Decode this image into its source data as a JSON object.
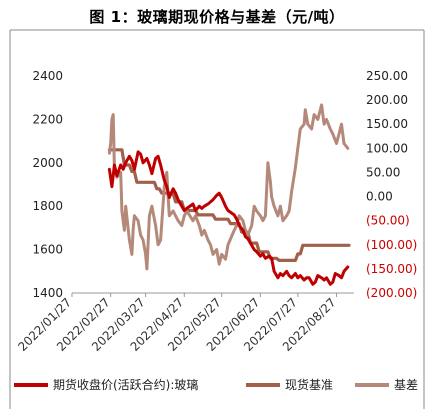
{
  "title": "图 1：玻璃期现价格与基差（元/吨）",
  "chart_data": {
    "type": "line",
    "title": "图 1：玻璃期现价格与基差（元/吨）",
    "xlabel": "",
    "ylabel_left": "",
    "ylabel_right": "",
    "x_ticks": [
      "2022/01/27",
      "2022/02/27",
      "2022/03/27",
      "2022/04/27",
      "2022/05/27",
      "2022/06/27",
      "2022/07/27",
      "2022/08/27"
    ],
    "x_range": [
      "2022/01/27",
      "2022/09/10"
    ],
    "left_axis": {
      "ylim": [
        1400,
        2400
      ],
      "ticks": [
        1400,
        1600,
        1800,
        2000,
        2200,
        2400
      ]
    },
    "right_axis": {
      "ylim": [
        -200,
        250
      ],
      "ticks": [
        {
          "value": 250,
          "label": "250.00",
          "color": "#222222"
        },
        {
          "value": 200,
          "label": "200.00",
          "color": "#222222"
        },
        {
          "value": 150,
          "label": "150.00",
          "color": "#222222"
        },
        {
          "value": 100,
          "label": "100.00",
          "color": "#222222"
        },
        {
          "value": 50,
          "label": "50.00",
          "color": "#222222"
        },
        {
          "value": 0,
          "label": "0.00",
          "color": "#222222"
        },
        {
          "value": -50,
          "label": "(50.00)",
          "color": "#cc0000"
        },
        {
          "value": -100,
          "label": "(100.00)",
          "color": "#cc0000"
        },
        {
          "value": -150,
          "label": "(150.00)",
          "color": "#cc0000"
        },
        {
          "value": -200,
          "label": "(200.00)",
          "color": "#cc0000"
        }
      ]
    },
    "grid": false,
    "legend": {
      "placement": "bottom"
    },
    "series": [
      {
        "name": "期货收盘价(活跃合约):玻璃",
        "axis": "left",
        "color": "#c00000",
        "points": [
          [
            "2022/02/26",
            1970
          ],
          [
            "2022/02/28",
            1890
          ],
          [
            "2022/03/02",
            1990
          ],
          [
            "2022/03/04",
            1940
          ],
          [
            "2022/03/07",
            1990
          ],
          [
            "2022/03/09",
            1970
          ],
          [
            "2022/03/11",
            2000
          ],
          [
            "2022/03/14",
            2030
          ],
          [
            "2022/03/16",
            2010
          ],
          [
            "2022/03/18",
            1970
          ],
          [
            "2022/03/21",
            2050
          ],
          [
            "2022/03/23",
            2040
          ],
          [
            "2022/03/25",
            2000
          ],
          [
            "2022/03/28",
            2020
          ],
          [
            "2022/03/30",
            1990
          ],
          [
            "2022/04/01",
            1950
          ],
          [
            "2022/04/04",
            2020
          ],
          [
            "2022/04/06",
            2030
          ],
          [
            "2022/04/08",
            1990
          ],
          [
            "2022/04/11",
            1920
          ],
          [
            "2022/04/13",
            1890
          ],
          [
            "2022/04/15",
            1840
          ],
          [
            "2022/04/18",
            1880
          ],
          [
            "2022/04/20",
            1860
          ],
          [
            "2022/04/22",
            1830
          ],
          [
            "2022/04/25",
            1800
          ],
          [
            "2022/04/27",
            1780
          ],
          [
            "2022/04/29",
            1790
          ],
          [
            "2022/05/04",
            1810
          ],
          [
            "2022/05/06",
            1780
          ],
          [
            "2022/05/09",
            1800
          ],
          [
            "2022/05/11",
            1790
          ],
          [
            "2022/05/13",
            1800
          ],
          [
            "2022/05/16",
            1810
          ],
          [
            "2022/05/18",
            1820
          ],
          [
            "2022/05/20",
            1830
          ],
          [
            "2022/05/23",
            1850
          ],
          [
            "2022/05/25",
            1860
          ],
          [
            "2022/05/27",
            1840
          ],
          [
            "2022/05/30",
            1800
          ],
          [
            "2022/06/01",
            1780
          ],
          [
            "2022/06/06",
            1760
          ],
          [
            "2022/06/08",
            1740
          ],
          [
            "2022/06/10",
            1710
          ],
          [
            "2022/06/13",
            1690
          ],
          [
            "2022/06/15",
            1660
          ],
          [
            "2022/06/17",
            1650
          ],
          [
            "2022/06/20",
            1620
          ],
          [
            "2022/06/22",
            1600
          ],
          [
            "2022/06/24",
            1590
          ],
          [
            "2022/06/27",
            1570
          ],
          [
            "2022/06/29",
            1580
          ],
          [
            "2022/07/01",
            1560
          ],
          [
            "2022/07/04",
            1570
          ],
          [
            "2022/07/06",
            1560
          ],
          [
            "2022/07/08",
            1500
          ],
          [
            "2022/07/11",
            1470
          ],
          [
            "2022/07/13",
            1490
          ],
          [
            "2022/07/15",
            1480
          ],
          [
            "2022/07/18",
            1500
          ],
          [
            "2022/07/20",
            1480
          ],
          [
            "2022/07/22",
            1470
          ],
          [
            "2022/07/25",
            1490
          ],
          [
            "2022/07/27",
            1470
          ],
          [
            "2022/07/29",
            1480
          ],
          [
            "2022/08/01",
            1460
          ],
          [
            "2022/08/03",
            1470
          ],
          [
            "2022/08/05",
            1470
          ],
          [
            "2022/08/08",
            1440
          ],
          [
            "2022/08/10",
            1450
          ],
          [
            "2022/08/12",
            1480
          ],
          [
            "2022/08/15",
            1470
          ],
          [
            "2022/08/17",
            1460
          ],
          [
            "2022/08/19",
            1470
          ],
          [
            "2022/08/22",
            1440
          ],
          [
            "2022/08/24",
            1450
          ],
          [
            "2022/08/26",
            1490
          ],
          [
            "2022/08/29",
            1480
          ],
          [
            "2022/08/31",
            1470
          ],
          [
            "2022/09/02",
            1500
          ],
          [
            "2022/09/05",
            1520
          ]
        ]
      },
      {
        "name": "现货基准",
        "axis": "left",
        "color": "#a0604a",
        "points": [
          [
            "2022/02/26",
            2060
          ],
          [
            "2022/03/08",
            2060
          ],
          [
            "2022/03/10",
            1990
          ],
          [
            "2022/03/14",
            1990
          ],
          [
            "2022/03/16",
            1960
          ],
          [
            "2022/03/18",
            1960
          ],
          [
            "2022/03/20",
            1910
          ],
          [
            "2022/04/03",
            1910
          ],
          [
            "2022/04/05",
            1880
          ],
          [
            "2022/04/07",
            1880
          ],
          [
            "2022/04/09",
            1860
          ],
          [
            "2022/04/18",
            1860
          ],
          [
            "2022/04/20",
            1820
          ],
          [
            "2022/04/25",
            1820
          ],
          [
            "2022/04/27",
            1780
          ],
          [
            "2022/05/06",
            1780
          ],
          [
            "2022/05/08",
            1760
          ],
          [
            "2022/05/20",
            1760
          ],
          [
            "2022/05/22",
            1740
          ],
          [
            "2022/06/01",
            1740
          ],
          [
            "2022/06/03",
            1720
          ],
          [
            "2022/06/10",
            1720
          ],
          [
            "2022/06/12",
            1680
          ],
          [
            "2022/06/17",
            1680
          ],
          [
            "2022/06/19",
            1630
          ],
          [
            "2022/06/24",
            1630
          ],
          [
            "2022/06/26",
            1590
          ],
          [
            "2022/07/03",
            1590
          ],
          [
            "2022/07/05",
            1560
          ],
          [
            "2022/07/10",
            1560
          ],
          [
            "2022/07/12",
            1550
          ],
          [
            "2022/07/25",
            1550
          ],
          [
            "2022/07/27",
            1580
          ],
          [
            "2022/07/29",
            1580
          ],
          [
            "2022/07/31",
            1620
          ],
          [
            "2022/09/06",
            1620
          ]
        ]
      },
      {
        "name": "基差",
        "axis": "right",
        "color": "#b5897a",
        "points": [
          [
            "2022/02/26",
            90
          ],
          [
            "2022/02/27",
            110
          ],
          [
            "2022/02/28",
            160
          ],
          [
            "2022/03/01",
            170
          ],
          [
            "2022/03/02",
            60
          ],
          [
            "2022/03/04",
            40
          ],
          [
            "2022/03/07",
            50
          ],
          [
            "2022/03/08",
            -30
          ],
          [
            "2022/03/10",
            -70
          ],
          [
            "2022/03/11",
            -20
          ],
          [
            "2022/03/14",
            -90
          ],
          [
            "2022/03/16",
            -120
          ],
          [
            "2022/03/17",
            -70
          ],
          [
            "2022/03/18",
            -40
          ],
          [
            "2022/03/21",
            -50
          ],
          [
            "2022/03/23",
            -80
          ],
          [
            "2022/03/25",
            -90
          ],
          [
            "2022/03/27",
            -120
          ],
          [
            "2022/03/28",
            -150
          ],
          [
            "2022/03/30",
            -40
          ],
          [
            "2022/04/01",
            -20
          ],
          [
            "2022/04/04",
            -60
          ],
          [
            "2022/04/06",
            -100
          ],
          [
            "2022/04/08",
            -90
          ],
          [
            "2022/04/11",
            20
          ],
          [
            "2022/04/13",
            50
          ],
          [
            "2022/04/14",
            0
          ],
          [
            "2022/04/15",
            -40
          ],
          [
            "2022/04/18",
            -30
          ],
          [
            "2022/04/20",
            -40
          ],
          [
            "2022/04/22",
            -50
          ],
          [
            "2022/04/25",
            -60
          ],
          [
            "2022/04/27",
            -40
          ],
          [
            "2022/04/29",
            -30
          ],
          [
            "2022/05/04",
            -50
          ],
          [
            "2022/05/06",
            -40
          ],
          [
            "2022/05/09",
            -60
          ],
          [
            "2022/05/11",
            -80
          ],
          [
            "2022/05/13",
            -70
          ],
          [
            "2022/05/16",
            -90
          ],
          [
            "2022/05/18",
            -100
          ],
          [
            "2022/05/20",
            -120
          ],
          [
            "2022/05/23",
            -110
          ],
          [
            "2022/05/25",
            -140
          ],
          [
            "2022/05/27",
            -120
          ],
          [
            "2022/05/30",
            -130
          ],
          [
            "2022/06/01",
            -100
          ],
          [
            "2022/06/06",
            -70
          ],
          [
            "2022/06/08",
            -60
          ],
          [
            "2022/06/10",
            -40
          ],
          [
            "2022/06/13",
            -50
          ],
          [
            "2022/06/15",
            -70
          ],
          [
            "2022/06/17",
            -80
          ],
          [
            "2022/06/20",
            -60
          ],
          [
            "2022/06/22",
            -20
          ],
          [
            "2022/06/24",
            -30
          ],
          [
            "2022/06/27",
            -40
          ],
          [
            "2022/06/29",
            -50
          ],
          [
            "2022/07/01",
            -40
          ],
          [
            "2022/07/03",
            70
          ],
          [
            "2022/07/05",
            30
          ],
          [
            "2022/07/06",
            0
          ],
          [
            "2022/07/08",
            -20
          ],
          [
            "2022/07/11",
            -40
          ],
          [
            "2022/07/13",
            -20
          ],
          [
            "2022/07/15",
            -50
          ],
          [
            "2022/07/18",
            -40
          ],
          [
            "2022/07/20",
            -30
          ],
          [
            "2022/07/22",
            10
          ],
          [
            "2022/07/25",
            60
          ],
          [
            "2022/07/27",
            100
          ],
          [
            "2022/07/29",
            140
          ],
          [
            "2022/08/01",
            150
          ],
          [
            "2022/08/02",
            180
          ],
          [
            "2022/08/04",
            150
          ],
          [
            "2022/08/07",
            140
          ],
          [
            "2022/08/09",
            170
          ],
          [
            "2022/08/12",
            160
          ],
          [
            "2022/08/15",
            190
          ],
          [
            "2022/08/17",
            150
          ],
          [
            "2022/08/19",
            160
          ],
          [
            "2022/08/22",
            140
          ],
          [
            "2022/08/24",
            130
          ],
          [
            "2022/08/27",
            110
          ],
          [
            "2022/08/29",
            130
          ],
          [
            "2022/08/31",
            150
          ],
          [
            "2022/09/02",
            110
          ],
          [
            "2022/09/05",
            100
          ]
        ]
      }
    ]
  }
}
